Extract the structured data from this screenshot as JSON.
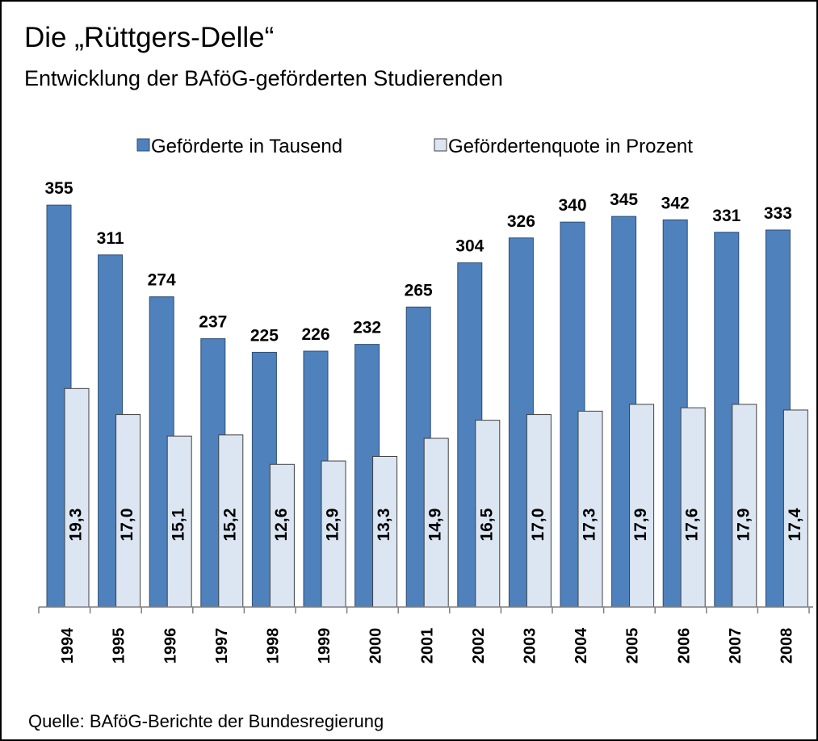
{
  "chart_data": {
    "type": "bar",
    "title": "Die „Rüttgers-Delle“",
    "subtitle": "Entwicklung der BAföG-geförderten Studierenden",
    "source": "Quelle:  BAföG-Berichte der Bundesregierung",
    "categories": [
      "1994",
      "1995",
      "1996",
      "1997",
      "1998",
      "1999",
      "2000",
      "2001",
      "2002",
      "2003",
      "2004",
      "2005",
      "2006",
      "2007",
      "2008"
    ],
    "series": [
      {
        "name": "Geförderte in Tausend",
        "color": "#4f81bd",
        "values": [
          355,
          311,
          274,
          237,
          225,
          226,
          232,
          265,
          304,
          326,
          340,
          345,
          342,
          331,
          333
        ]
      },
      {
        "name": "Gefördertenquote in Prozent",
        "color": "#dce6f2",
        "axis": "y2",
        "values": [
          19.3,
          17.0,
          15.1,
          15.2,
          12.6,
          12.9,
          13.3,
          14.9,
          16.5,
          17.0,
          17.3,
          17.9,
          17.6,
          17.9,
          17.4
        ],
        "value_labels": [
          "19,3",
          "17,0",
          "15,1",
          "15,2",
          "12,6",
          "12,9",
          "13,3",
          "14,9",
          "16,5",
          "17,0",
          "17,3",
          "17,9",
          "17,6",
          "17,9",
          "17,4"
        ]
      }
    ],
    "ylim": [
      0,
      400
    ],
    "y2lim": [
      0,
      40
    ],
    "legend": "top"
  }
}
